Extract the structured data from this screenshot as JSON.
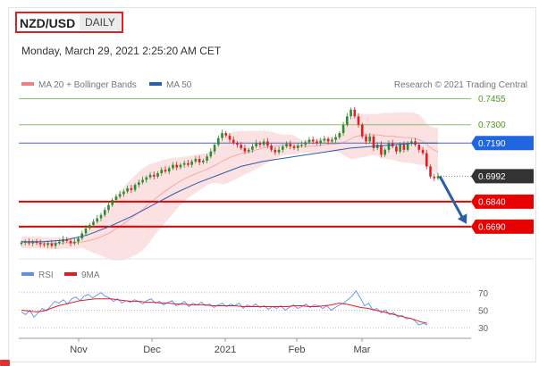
{
  "header": {
    "pair": "NZD/USD",
    "period": "DAILY"
  },
  "datetime": "Monday, March 29, 2021 2:25:20 AM CET",
  "legend": {
    "bb_label": "MA 20 + Bollinger Bands",
    "ma50_label": "MA 50",
    "credit": "Research © 2021 Trading Central"
  },
  "rsi_legend": {
    "rsi_label": "RSI",
    "ma_label": "9MA"
  },
  "colors": {
    "bb": "#f08080",
    "ma50": "#2a5fa8",
    "price_red": "#e02020",
    "price_green": "#2e8b2e",
    "level_green": "#8cbf6a",
    "level_blue": "#3a6fe0",
    "level_red": "#e80000",
    "current": "#333333",
    "arrow": "#2a5fa8",
    "rsi": "#5b8ff0",
    "rsi_ma": "#e02020"
  },
  "chart_data": [
    {
      "type": "candlestick",
      "title": "NZD/USD",
      "x_labels": [
        "Nov",
        "Dec",
        "2021",
        "Feb",
        "Mar"
      ],
      "ylim": [
        0.654,
        0.748
      ],
      "series": [
        {
          "name": "NZD/USD",
          "type": "ohlc-close",
          "values": [
            0.6595,
            0.6598,
            0.659,
            0.66,
            0.6593,
            0.6585,
            0.658,
            0.659,
            0.6575,
            0.6592,
            0.66,
            0.6615,
            0.6605,
            0.659,
            0.66,
            0.662,
            0.665,
            0.668,
            0.67,
            0.672,
            0.674,
            0.676,
            0.679,
            0.682,
            0.685,
            0.687,
            0.6885,
            0.69,
            0.692,
            0.691,
            0.694,
            0.6955,
            0.697,
            0.6985,
            0.7,
            0.699,
            0.701,
            0.703,
            0.702,
            0.704,
            0.706,
            0.7045,
            0.706,
            0.707,
            0.706,
            0.708,
            0.7095,
            0.7075,
            0.7085,
            0.711,
            0.714,
            0.718,
            0.722,
            0.725,
            0.7235,
            0.721,
            0.719,
            0.718,
            0.716,
            0.714,
            0.715,
            0.717,
            0.719,
            0.718,
            0.72,
            0.7175,
            0.715,
            0.7135,
            0.715,
            0.717,
            0.7185,
            0.717,
            0.716,
            0.7175,
            0.718,
            0.7195,
            0.721,
            0.72,
            0.719,
            0.7205,
            0.7215,
            0.72,
            0.721,
            0.7225,
            0.725,
            0.73,
            0.735,
            0.739,
            0.735,
            0.73,
            0.723,
            0.72,
            0.723,
            0.716,
            0.718,
            0.712,
            0.715,
            0.719,
            0.717,
            0.714,
            0.718,
            0.715,
            0.719,
            0.72,
            0.718,
            0.715,
            0.713,
            0.705,
            0.699,
            0.698,
            0.6992
          ]
        },
        {
          "name": "MA 50",
          "values": [
            0.66,
            0.66,
            0.661,
            0.664,
            0.669,
            0.675,
            0.682,
            0.689,
            0.695,
            0.7,
            0.705,
            0.708,
            0.71,
            0.712,
            0.714,
            0.716,
            0.717,
            0.718,
            0.719,
            0.719
          ]
        }
      ],
      "levels": [
        {
          "label": "0.7455",
          "value": 0.7455,
          "style": "resistance"
        },
        {
          "label": "0.7300",
          "value": 0.73,
          "style": "resistance"
        },
        {
          "label": "0.7190",
          "value": 0.719,
          "style": "pivot"
        },
        {
          "label": "0.6992",
          "value": 0.6992,
          "style": "current"
        },
        {
          "label": "0.6840",
          "value": 0.684,
          "style": "support"
        },
        {
          "label": "0.6690",
          "value": 0.669,
          "style": "support"
        }
      ]
    },
    {
      "type": "line",
      "title": "RSI",
      "ylim": [
        25,
        80
      ],
      "y_ticks": [
        "70",
        "50",
        "30"
      ],
      "series": [
        {
          "name": "RSI",
          "values": [
            48,
            45,
            50,
            42,
            47,
            52,
            49,
            55,
            60,
            58,
            62,
            57,
            63,
            65,
            61,
            66,
            68,
            64,
            67,
            70,
            66,
            64,
            60,
            63,
            58,
            61,
            59,
            62,
            60,
            57,
            61,
            63,
            58,
            60,
            56,
            59,
            61,
            55,
            57,
            60,
            54,
            58,
            56,
            59,
            55,
            57,
            53,
            56,
            58,
            54,
            57,
            55,
            58,
            52,
            56,
            54,
            57,
            53,
            55,
            51,
            54,
            52,
            55,
            50,
            53,
            56,
            52,
            54,
            57,
            53,
            56,
            55,
            52,
            55,
            50,
            53,
            56,
            58,
            62,
            66,
            72,
            64,
            55,
            58,
            50,
            52,
            47,
            50,
            45,
            47,
            42,
            44,
            40,
            41,
            38,
            33,
            35,
            33
          ]
        },
        {
          "name": "9MA",
          "values": [
            50,
            49,
            48,
            49,
            52,
            55,
            57,
            59,
            61,
            62,
            63,
            63,
            63,
            62,
            61,
            60,
            60,
            59,
            59,
            58,
            58,
            57,
            57,
            56,
            56,
            56,
            55,
            55,
            55,
            55,
            54,
            54,
            54,
            54,
            54,
            54,
            54,
            55,
            55,
            54,
            54,
            55,
            56,
            58,
            57,
            55,
            53,
            52,
            50,
            48,
            46,
            44,
            42,
            40,
            37,
            35
          ]
        }
      ]
    }
  ]
}
